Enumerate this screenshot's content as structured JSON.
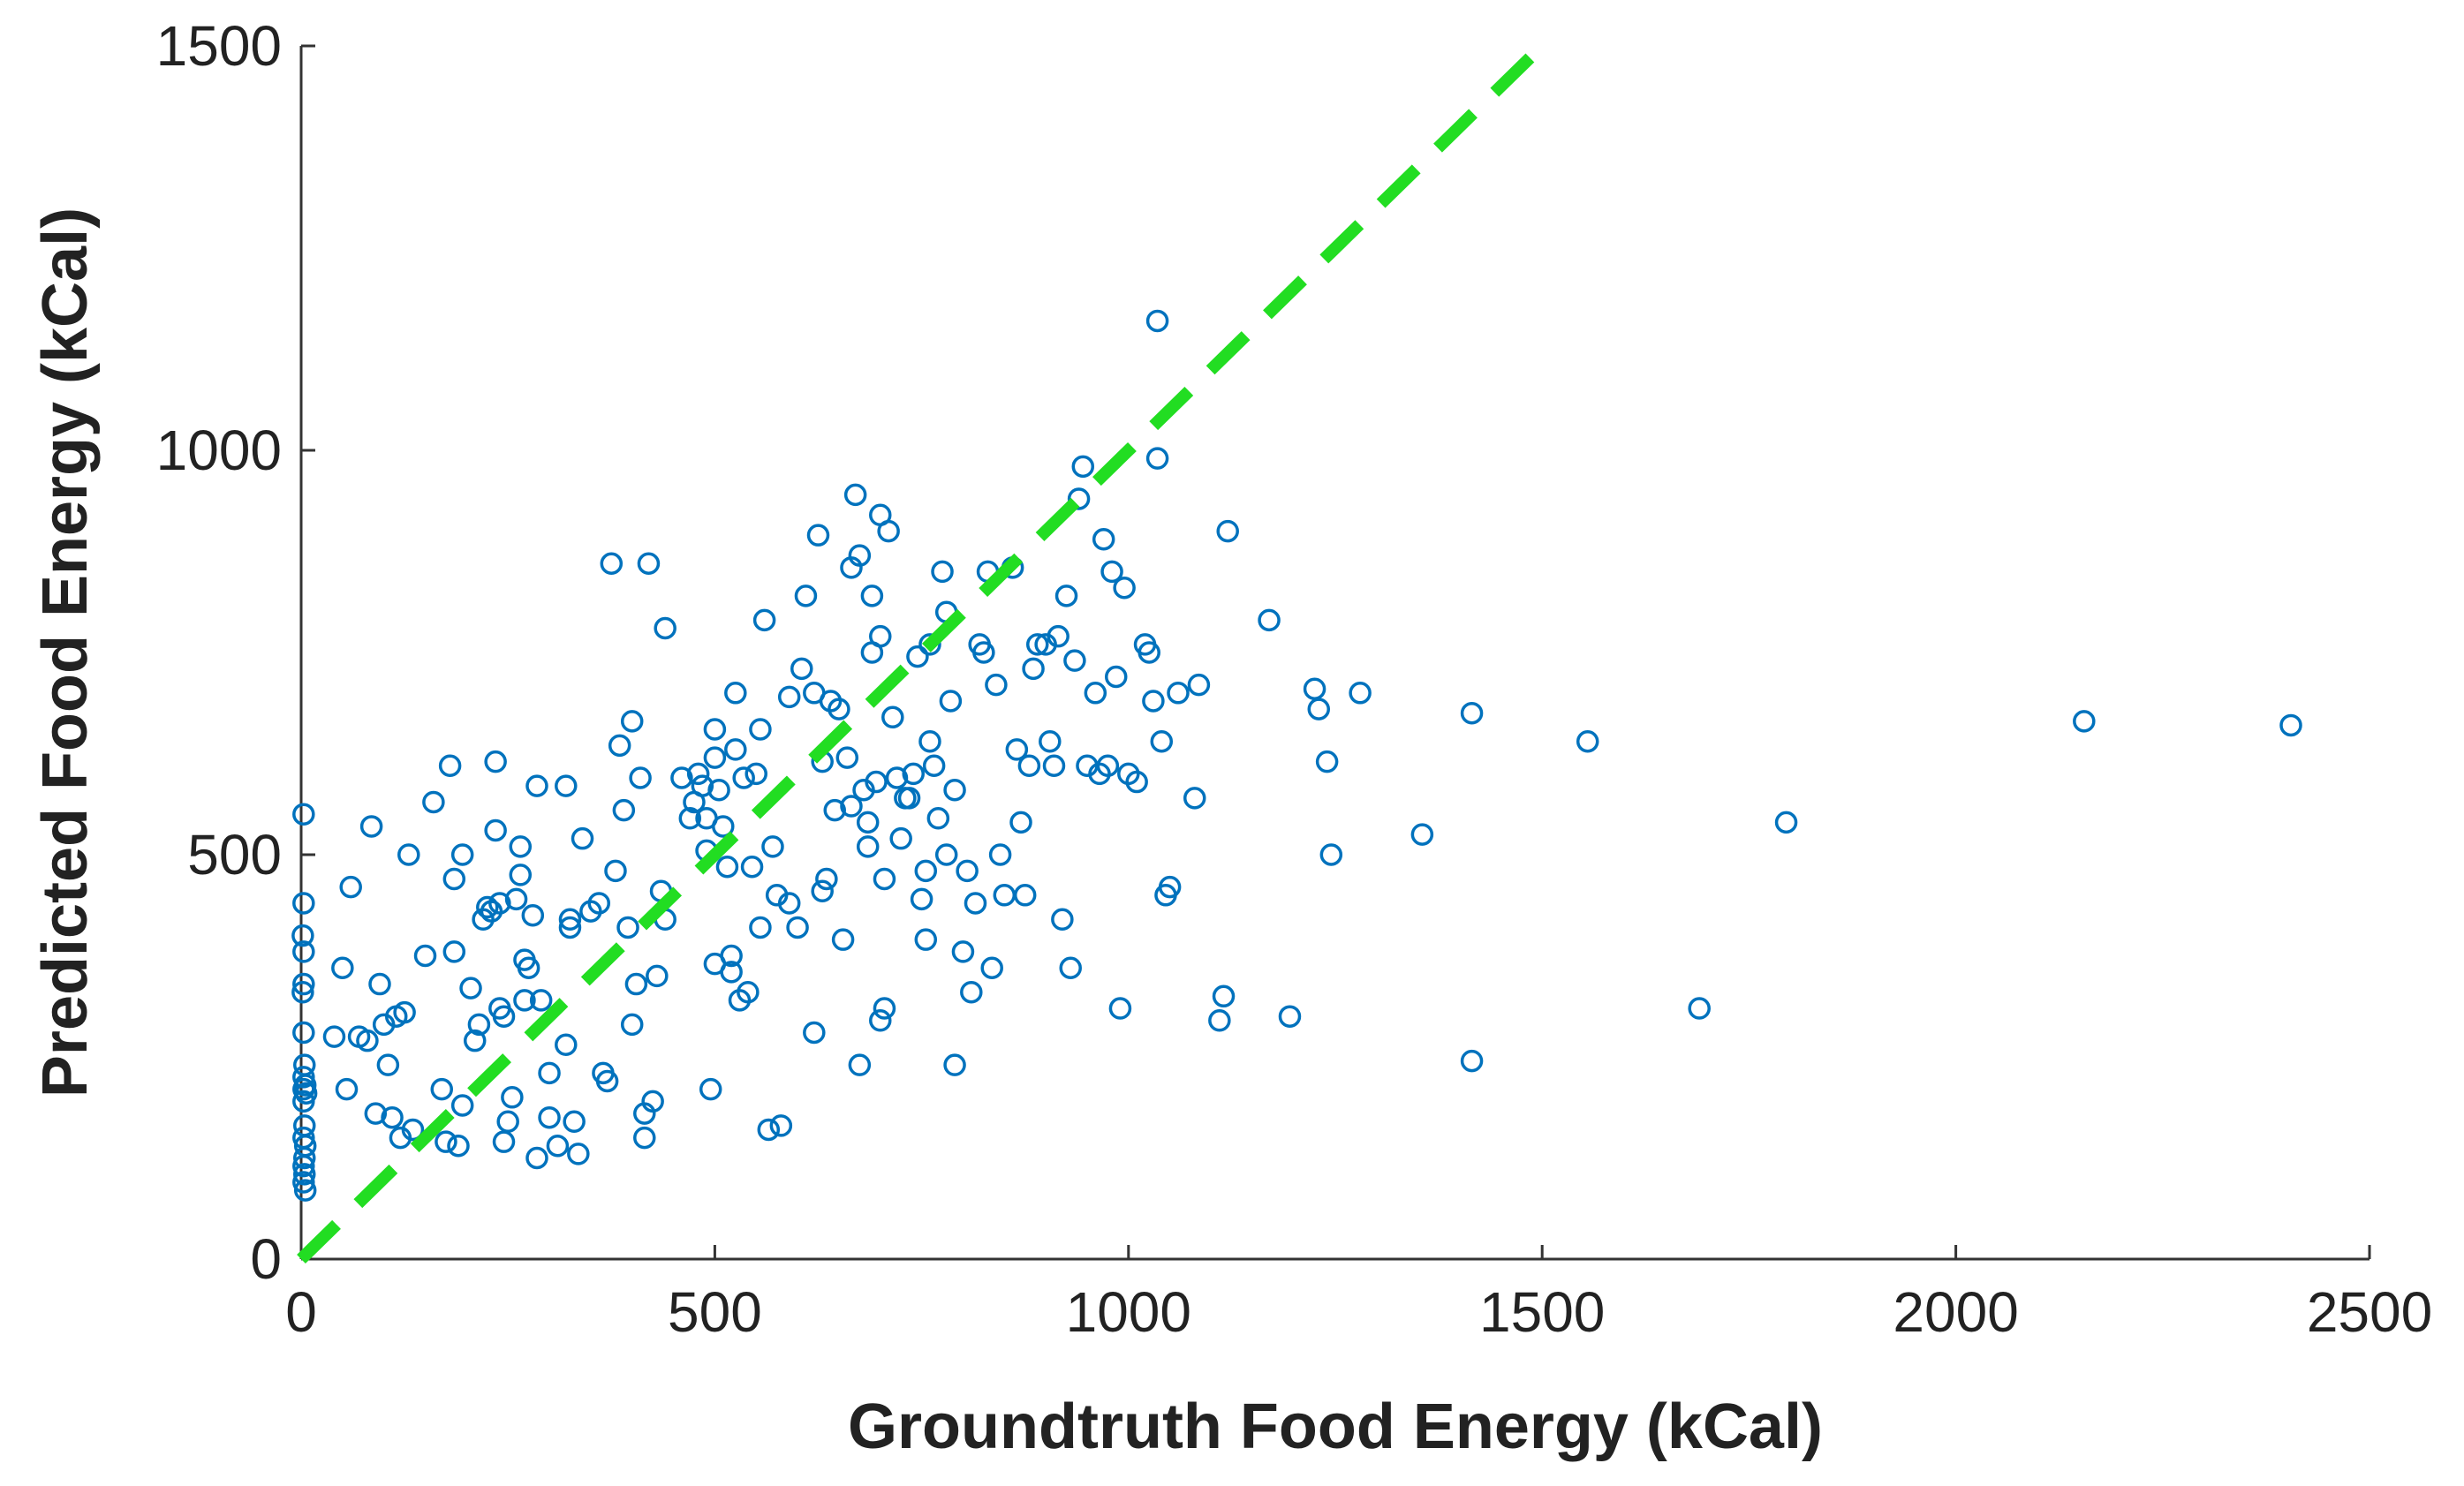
{
  "chart_data": {
    "type": "scatter",
    "title": "",
    "xlabel": "Groundtruth Food Energy (kCal)",
    "ylabel": "Predicted Food Energy (kCal)",
    "xlim": [
      0,
      2500
    ],
    "ylim": [
      0,
      1500
    ],
    "xticks": [
      0,
      500,
      1000,
      1500,
      2000,
      2500
    ],
    "yticks": [
      0,
      500,
      1000,
      1500
    ],
    "xtick_labels": [
      "0",
      "500",
      "1000",
      "1500",
      "2000",
      "2500"
    ],
    "ytick_labels": [
      "0",
      "500",
      "1000",
      "1500"
    ],
    "grid": false,
    "marker_color": "#0072BD",
    "reference_line": {
      "name": "y = x",
      "style": "dashed",
      "color": "#22DD22",
      "from": [
        0,
        0
      ],
      "to": [
        1500,
        1500
      ]
    },
    "series": [
      {
        "name": "predictions",
        "points": [
          [
            3,
            550
          ],
          [
            3,
            440
          ],
          [
            2,
            400
          ],
          [
            3,
            380
          ],
          [
            3,
            340
          ],
          [
            2,
            330
          ],
          [
            3,
            280
          ],
          [
            4,
            240
          ],
          [
            3,
            225
          ],
          [
            5,
            215
          ],
          [
            3,
            210
          ],
          [
            6,
            205
          ],
          [
            3,
            195
          ],
          [
            4,
            165
          ],
          [
            3,
            150
          ],
          [
            5,
            140
          ],
          [
            4,
            125
          ],
          [
            3,
            115
          ],
          [
            4,
            105
          ],
          [
            3,
            95
          ],
          [
            5,
            85
          ],
          [
            60,
            460
          ],
          [
            85,
            535
          ],
          [
            50,
            360
          ],
          [
            40,
            275
          ],
          [
            55,
            210
          ],
          [
            70,
            275
          ],
          [
            80,
            270
          ],
          [
            95,
            340
          ],
          [
            90,
            180
          ],
          [
            100,
            290
          ],
          [
            105,
            240
          ],
          [
            115,
            300
          ],
          [
            120,
            150
          ],
          [
            125,
            305
          ],
          [
            110,
            175
          ],
          [
            130,
            500
          ],
          [
            150,
            375
          ],
          [
            135,
            160
          ],
          [
            160,
            565
          ],
          [
            170,
            210
          ],
          [
            175,
            145
          ],
          [
            180,
            610
          ],
          [
            185,
            380
          ],
          [
            190,
            140
          ],
          [
            195,
            190
          ],
          [
            185,
            470
          ],
          [
            195,
            500
          ],
          [
            205,
            335
          ],
          [
            210,
            270
          ],
          [
            215,
            290
          ],
          [
            220,
            420
          ],
          [
            225,
            435
          ],
          [
            230,
            430
          ],
          [
            235,
            615
          ],
          [
            235,
            530
          ],
          [
            240,
            440
          ],
          [
            240,
            310
          ],
          [
            245,
            300
          ],
          [
            250,
            170
          ],
          [
            245,
            145
          ],
          [
            255,
            200
          ],
          [
            260,
            445
          ],
          [
            265,
            475
          ],
          [
            265,
            510
          ],
          [
            270,
            320
          ],
          [
            270,
            370
          ],
          [
            275,
            360
          ],
          [
            280,
            425
          ],
          [
            285,
            125
          ],
          [
            285,
            585
          ],
          [
            290,
            320
          ],
          [
            300,
            230
          ],
          [
            300,
            175
          ],
          [
            310,
            140
          ],
          [
            320,
            265
          ],
          [
            320,
            585
          ],
          [
            325,
            410
          ],
          [
            325,
            420
          ],
          [
            330,
            170
          ],
          [
            335,
            130
          ],
          [
            340,
            520
          ],
          [
            350,
            430
          ],
          [
            360,
            440
          ],
          [
            365,
            230
          ],
          [
            370,
            220
          ],
          [
            375,
            860
          ],
          [
            380,
            480
          ],
          [
            385,
            635
          ],
          [
            390,
            555
          ],
          [
            395,
            410
          ],
          [
            400,
            665
          ],
          [
            400,
            290
          ],
          [
            405,
            340
          ],
          [
            410,
            595
          ],
          [
            415,
            150
          ],
          [
            415,
            180
          ],
          [
            420,
            860
          ],
          [
            425,
            195
          ],
          [
            430,
            350
          ],
          [
            435,
            455
          ],
          [
            440,
            780
          ],
          [
            440,
            420
          ],
          [
            460,
            595
          ],
          [
            470,
            545
          ],
          [
            475,
            565
          ],
          [
            480,
            600
          ],
          [
            485,
            585
          ],
          [
            490,
            545
          ],
          [
            490,
            505
          ],
          [
            495,
            210
          ],
          [
            500,
            365
          ],
          [
            500,
            655
          ],
          [
            500,
            620
          ],
          [
            505,
            580
          ],
          [
            510,
            535
          ],
          [
            515,
            485
          ],
          [
            520,
            355
          ],
          [
            520,
            375
          ],
          [
            525,
            700
          ],
          [
            525,
            630
          ],
          [
            530,
            320
          ],
          [
            535,
            595
          ],
          [
            540,
            330
          ],
          [
            545,
            485
          ],
          [
            550,
            600
          ],
          [
            555,
            410
          ],
          [
            555,
            655
          ],
          [
            560,
            790
          ],
          [
            565,
            160
          ],
          [
            570,
            510
          ],
          [
            575,
            450
          ],
          [
            580,
            165
          ],
          [
            590,
            695
          ],
          [
            590,
            440
          ],
          [
            600,
            410
          ],
          [
            605,
            730
          ],
          [
            610,
            820
          ],
          [
            620,
            700
          ],
          [
            620,
            280
          ],
          [
            630,
            615
          ],
          [
            625,
            895
          ],
          [
            630,
            455
          ],
          [
            635,
            470
          ],
          [
            640,
            690
          ],
          [
            645,
            555
          ],
          [
            650,
            680
          ],
          [
            655,
            395
          ],
          [
            660,
            620
          ],
          [
            665,
            560
          ],
          [
            665,
            855
          ],
          [
            670,
            945
          ],
          [
            675,
            870
          ],
          [
            675,
            240
          ],
          [
            680,
            580
          ],
          [
            685,
            540
          ],
          [
            685,
            510
          ],
          [
            690,
            820
          ],
          [
            690,
            750
          ],
          [
            695,
            590
          ],
          [
            700,
            920
          ],
          [
            700,
            770
          ],
          [
            700,
            295
          ],
          [
            705,
            470
          ],
          [
            705,
            310
          ],
          [
            710,
            900
          ],
          [
            715,
            670
          ],
          [
            720,
            595
          ],
          [
            725,
            520
          ],
          [
            730,
            570
          ],
          [
            735,
            570
          ],
          [
            740,
            600
          ],
          [
            745,
            745
          ],
          [
            750,
            445
          ],
          [
            755,
            395
          ],
          [
            755,
            480
          ],
          [
            760,
            760
          ],
          [
            760,
            640
          ],
          [
            765,
            610
          ],
          [
            770,
            545
          ],
          [
            775,
            850
          ],
          [
            780,
            800
          ],
          [
            780,
            500
          ],
          [
            785,
            690
          ],
          [
            790,
            580
          ],
          [
            790,
            240
          ],
          [
            800,
            380
          ],
          [
            805,
            480
          ],
          [
            810,
            330
          ],
          [
            815,
            440
          ],
          [
            820,
            760
          ],
          [
            825,
            750
          ],
          [
            830,
            850
          ],
          [
            835,
            360
          ],
          [
            840,
            710
          ],
          [
            845,
            500
          ],
          [
            850,
            450
          ],
          [
            860,
            855
          ],
          [
            865,
            630
          ],
          [
            870,
            540
          ],
          [
            875,
            450
          ],
          [
            880,
            610
          ],
          [
            885,
            730
          ],
          [
            890,
            760
          ],
          [
            900,
            760
          ],
          [
            905,
            640
          ],
          [
            910,
            610
          ],
          [
            915,
            770
          ],
          [
            920,
            420
          ],
          [
            925,
            820
          ],
          [
            930,
            360
          ],
          [
            935,
            740
          ],
          [
            940,
            940
          ],
          [
            945,
            980
          ],
          [
            950,
            610
          ],
          [
            960,
            700
          ],
          [
            965,
            600
          ],
          [
            970,
            890
          ],
          [
            975,
            610
          ],
          [
            980,
            850
          ],
          [
            985,
            720
          ],
          [
            990,
            310
          ],
          [
            995,
            830
          ],
          [
            1000,
            600
          ],
          [
            1010,
            590
          ],
          [
            1020,
            760
          ],
          [
            1025,
            750
          ],
          [
            1030,
            690
          ],
          [
            1035,
            1160
          ],
          [
            1035,
            990
          ],
          [
            1040,
            640
          ],
          [
            1045,
            450
          ],
          [
            1050,
            460
          ],
          [
            1060,
            700
          ],
          [
            1080,
            570
          ],
          [
            1085,
            710
          ],
          [
            1110,
            295
          ],
          [
            1115,
            325
          ],
          [
            1120,
            900
          ],
          [
            1170,
            790
          ],
          [
            1195,
            300
          ],
          [
            1225,
            705
          ],
          [
            1230,
            680
          ],
          [
            1240,
            615
          ],
          [
            1245,
            500
          ],
          [
            1280,
            700
          ],
          [
            1355,
            525
          ],
          [
            1415,
            675
          ],
          [
            1415,
            245
          ],
          [
            1555,
            640
          ],
          [
            1690,
            310
          ],
          [
            1795,
            540
          ],
          [
            2155,
            665
          ],
          [
            2405,
            660
          ]
        ]
      }
    ]
  }
}
